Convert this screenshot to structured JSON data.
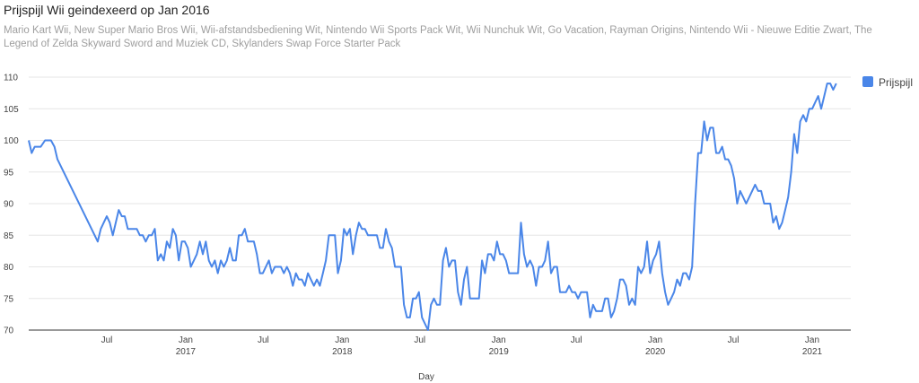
{
  "header": {
    "title": "Prijspijl Wii geindexeerd op Jan 2016",
    "subtitle": "Mario Kart Wii, New Super Mario Bros Wii, Wii-afstandsbediening Wit, Nintendo Wii Sports Pack Wit, Wii Nunchuk Wit, Go Vacation, Rayman Origins, Nintendo Wii - Nieuwe Editie Zwart, The Legend of Zelda Skyward Sword and Muziek CD, Skylanders Swap Force Starter Pack"
  },
  "colors": {
    "series": "#4a86e8",
    "grid": "#e6e6e6",
    "axis": "#444444"
  },
  "chart_data": {
    "type": "line",
    "title": "Prijspijl Wii geindexeerd op Jan 2016",
    "xlabel": "Day",
    "ylabel": "",
    "ylim": [
      70,
      110
    ],
    "xlim": [
      "2016-01-01",
      "2021-04-01"
    ],
    "yticks": [
      70,
      75,
      80,
      85,
      90,
      95,
      100,
      105,
      110
    ],
    "xticks": [
      {
        "date": "2016-07-01",
        "label": "Jul",
        "year": ""
      },
      {
        "date": "2017-01-01",
        "label": "Jan",
        "year": "2017"
      },
      {
        "date": "2017-07-01",
        "label": "Jul",
        "year": ""
      },
      {
        "date": "2018-01-01",
        "label": "Jan",
        "year": "2018"
      },
      {
        "date": "2018-07-01",
        "label": "Jul",
        "year": ""
      },
      {
        "date": "2019-01-01",
        "label": "Jan",
        "year": "2019"
      },
      {
        "date": "2019-07-01",
        "label": "Jul",
        "year": ""
      },
      {
        "date": "2020-01-01",
        "label": "Jan",
        "year": "2020"
      },
      {
        "date": "2020-07-01",
        "label": "Jul",
        "year": ""
      },
      {
        "date": "2021-01-01",
        "label": "Jan",
        "year": "2021"
      }
    ],
    "grid": true,
    "legend": "right",
    "series": [
      {
        "name": "Prijspijl",
        "points": [
          [
            "2016-01-01",
            100
          ],
          [
            "2016-01-08",
            98
          ],
          [
            "2016-01-15",
            99
          ],
          [
            "2016-01-29",
            99
          ],
          [
            "2016-02-08",
            100
          ],
          [
            "2016-02-22",
            100
          ],
          [
            "2016-03-01",
            99
          ],
          [
            "2016-03-08",
            97
          ],
          [
            "2016-06-10",
            84
          ],
          [
            "2016-06-17",
            86
          ],
          [
            "2016-06-24",
            87
          ],
          [
            "2016-07-01",
            88
          ],
          [
            "2016-07-08",
            87
          ],
          [
            "2016-07-15",
            85
          ],
          [
            "2016-07-22",
            87
          ],
          [
            "2016-07-29",
            89
          ],
          [
            "2016-08-05",
            88
          ],
          [
            "2016-08-12",
            88
          ],
          [
            "2016-08-19",
            86
          ],
          [
            "2016-09-09",
            86
          ],
          [
            "2016-09-16",
            85
          ],
          [
            "2016-09-23",
            85
          ],
          [
            "2016-09-30",
            84
          ],
          [
            "2016-10-07",
            85
          ],
          [
            "2016-10-14",
            85
          ],
          [
            "2016-10-21",
            86
          ],
          [
            "2016-10-28",
            81
          ],
          [
            "2016-11-04",
            82
          ],
          [
            "2016-11-11",
            81
          ],
          [
            "2016-11-18",
            84
          ],
          [
            "2016-11-25",
            83
          ],
          [
            "2016-12-02",
            86
          ],
          [
            "2016-12-09",
            85
          ],
          [
            "2016-12-16",
            81
          ],
          [
            "2016-12-23",
            84
          ],
          [
            "2016-12-30",
            84
          ],
          [
            "2017-01-06",
            83
          ],
          [
            "2017-01-13",
            80
          ],
          [
            "2017-01-20",
            81
          ],
          [
            "2017-01-27",
            82
          ],
          [
            "2017-02-03",
            84
          ],
          [
            "2017-02-10",
            82
          ],
          [
            "2017-02-17",
            84
          ],
          [
            "2017-02-24",
            81
          ],
          [
            "2017-03-03",
            80
          ],
          [
            "2017-03-10",
            81
          ],
          [
            "2017-03-17",
            79
          ],
          [
            "2017-03-24",
            81
          ],
          [
            "2017-03-31",
            80
          ],
          [
            "2017-04-07",
            81
          ],
          [
            "2017-04-14",
            83
          ],
          [
            "2017-04-21",
            81
          ],
          [
            "2017-04-28",
            81
          ],
          [
            "2017-05-05",
            85
          ],
          [
            "2017-05-12",
            85
          ],
          [
            "2017-05-19",
            86
          ],
          [
            "2017-05-26",
            84
          ],
          [
            "2017-06-09",
            84
          ],
          [
            "2017-06-16",
            82
          ],
          [
            "2017-06-23",
            79
          ],
          [
            "2017-06-30",
            79
          ],
          [
            "2017-07-07",
            80
          ],
          [
            "2017-07-14",
            81
          ],
          [
            "2017-07-21",
            79
          ],
          [
            "2017-07-28",
            80
          ],
          [
            "2017-08-11",
            80
          ],
          [
            "2017-08-18",
            79
          ],
          [
            "2017-08-25",
            80
          ],
          [
            "2017-09-01",
            79
          ],
          [
            "2017-09-08",
            77
          ],
          [
            "2017-09-15",
            79
          ],
          [
            "2017-09-22",
            78
          ],
          [
            "2017-09-29",
            78
          ],
          [
            "2017-10-06",
            77
          ],
          [
            "2017-10-13",
            79
          ],
          [
            "2017-10-20",
            78
          ],
          [
            "2017-10-27",
            77
          ],
          [
            "2017-11-03",
            78
          ],
          [
            "2017-11-10",
            77
          ],
          [
            "2017-11-17",
            79
          ],
          [
            "2017-11-24",
            81
          ],
          [
            "2017-12-01",
            85
          ],
          [
            "2017-12-15",
            85
          ],
          [
            "2017-12-22",
            79
          ],
          [
            "2017-12-29",
            81
          ],
          [
            "2018-01-05",
            86
          ],
          [
            "2018-01-12",
            85
          ],
          [
            "2018-01-19",
            86
          ],
          [
            "2018-01-26",
            82
          ],
          [
            "2018-02-02",
            85
          ],
          [
            "2018-02-09",
            87
          ],
          [
            "2018-02-16",
            86
          ],
          [
            "2018-02-23",
            86
          ],
          [
            "2018-03-02",
            85
          ],
          [
            "2018-03-23",
            85
          ],
          [
            "2018-03-30",
            83
          ],
          [
            "2018-04-06",
            83
          ],
          [
            "2018-04-13",
            86
          ],
          [
            "2018-04-20",
            84
          ],
          [
            "2018-04-27",
            83
          ],
          [
            "2018-05-04",
            80
          ],
          [
            "2018-05-18",
            80
          ],
          [
            "2018-05-25",
            74
          ],
          [
            "2018-06-01",
            72
          ],
          [
            "2018-06-08",
            72
          ],
          [
            "2018-06-15",
            75
          ],
          [
            "2018-06-22",
            75
          ],
          [
            "2018-06-29",
            76
          ],
          [
            "2018-07-06",
            72
          ],
          [
            "2018-07-20",
            70
          ],
          [
            "2018-07-27",
            74
          ],
          [
            "2018-08-03",
            75
          ],
          [
            "2018-08-10",
            74
          ],
          [
            "2018-08-17",
            74
          ],
          [
            "2018-08-24",
            81
          ],
          [
            "2018-08-31",
            83
          ],
          [
            "2018-09-07",
            80
          ],
          [
            "2018-09-14",
            81
          ],
          [
            "2018-09-21",
            81
          ],
          [
            "2018-09-28",
            76
          ],
          [
            "2018-10-05",
            74
          ],
          [
            "2018-10-12",
            78
          ],
          [
            "2018-10-19",
            80
          ],
          [
            "2018-10-26",
            75
          ],
          [
            "2018-11-16",
            75
          ],
          [
            "2018-11-23",
            81
          ],
          [
            "2018-11-30",
            79
          ],
          [
            "2018-12-07",
            82
          ],
          [
            "2018-12-14",
            82
          ],
          [
            "2018-12-21",
            81
          ],
          [
            "2018-12-28",
            84
          ],
          [
            "2019-01-04",
            82
          ],
          [
            "2019-01-11",
            82
          ],
          [
            "2019-01-18",
            81
          ],
          [
            "2019-01-25",
            79
          ],
          [
            "2019-02-15",
            79
          ],
          [
            "2019-02-22",
            87
          ],
          [
            "2019-03-01",
            82
          ],
          [
            "2019-03-08",
            80
          ],
          [
            "2019-03-15",
            81
          ],
          [
            "2019-03-22",
            80
          ],
          [
            "2019-03-29",
            77
          ],
          [
            "2019-04-05",
            80
          ],
          [
            "2019-04-12",
            80
          ],
          [
            "2019-04-19",
            81
          ],
          [
            "2019-04-26",
            84
          ],
          [
            "2019-05-03",
            79
          ],
          [
            "2019-05-10",
            80
          ],
          [
            "2019-05-17",
            80
          ],
          [
            "2019-05-24",
            76
          ],
          [
            "2019-06-07",
            76
          ],
          [
            "2019-06-14",
            77
          ],
          [
            "2019-06-21",
            76
          ],
          [
            "2019-06-28",
            76
          ],
          [
            "2019-07-05",
            75
          ],
          [
            "2019-07-12",
            76
          ],
          [
            "2019-07-26",
            76
          ],
          [
            "2019-08-02",
            72
          ],
          [
            "2019-08-09",
            74
          ],
          [
            "2019-08-16",
            73
          ],
          [
            "2019-08-30",
            73
          ],
          [
            "2019-09-06",
            75
          ],
          [
            "2019-09-13",
            75
          ],
          [
            "2019-09-20",
            72
          ],
          [
            "2019-09-27",
            73
          ],
          [
            "2019-10-04",
            75
          ],
          [
            "2019-10-11",
            78
          ],
          [
            "2019-10-18",
            78
          ],
          [
            "2019-10-25",
            77
          ],
          [
            "2019-11-01",
            74
          ],
          [
            "2019-11-08",
            75
          ],
          [
            "2019-11-15",
            74
          ],
          [
            "2019-11-22",
            80
          ],
          [
            "2019-11-29",
            79
          ],
          [
            "2019-12-06",
            80
          ],
          [
            "2019-12-13",
            84
          ],
          [
            "2019-12-20",
            79
          ],
          [
            "2019-12-27",
            81
          ],
          [
            "2020-01-03",
            82
          ],
          [
            "2020-01-10",
            84
          ],
          [
            "2020-01-17",
            79
          ],
          [
            "2020-01-24",
            76
          ],
          [
            "2020-01-31",
            74
          ],
          [
            "2020-02-07",
            75
          ],
          [
            "2020-02-14",
            76
          ],
          [
            "2020-02-21",
            78
          ],
          [
            "2020-02-28",
            77
          ],
          [
            "2020-03-06",
            79
          ],
          [
            "2020-03-13",
            79
          ],
          [
            "2020-03-20",
            78
          ],
          [
            "2020-03-27",
            80
          ],
          [
            "2020-04-03",
            90
          ],
          [
            "2020-04-10",
            98
          ],
          [
            "2020-04-17",
            98
          ],
          [
            "2020-04-24",
            103
          ],
          [
            "2020-05-01",
            100
          ],
          [
            "2020-05-08",
            102
          ],
          [
            "2020-05-15",
            102
          ],
          [
            "2020-05-22",
            98
          ],
          [
            "2020-05-29",
            98
          ],
          [
            "2020-06-05",
            99
          ],
          [
            "2020-06-12",
            97
          ],
          [
            "2020-06-19",
            97
          ],
          [
            "2020-06-26",
            96
          ],
          [
            "2020-07-03",
            94
          ],
          [
            "2020-07-10",
            90
          ],
          [
            "2020-07-17",
            92
          ],
          [
            "2020-07-24",
            91
          ],
          [
            "2020-07-31",
            90
          ],
          [
            "2020-08-07",
            91
          ],
          [
            "2020-08-14",
            92
          ],
          [
            "2020-08-21",
            93
          ],
          [
            "2020-08-28",
            92
          ],
          [
            "2020-09-04",
            92
          ],
          [
            "2020-09-11",
            90
          ],
          [
            "2020-09-25",
            90
          ],
          [
            "2020-10-02",
            87
          ],
          [
            "2020-10-09",
            88
          ],
          [
            "2020-10-16",
            86
          ],
          [
            "2020-10-23",
            87
          ],
          [
            "2020-10-30",
            89
          ],
          [
            "2020-11-06",
            91
          ],
          [
            "2020-11-13",
            95
          ],
          [
            "2020-11-20",
            101
          ],
          [
            "2020-11-27",
            98
          ],
          [
            "2020-12-04",
            103
          ],
          [
            "2020-12-11",
            104
          ],
          [
            "2020-12-18",
            103
          ],
          [
            "2020-12-25",
            105
          ],
          [
            "2021-01-01",
            105
          ],
          [
            "2021-01-08",
            106
          ],
          [
            "2021-01-15",
            107
          ],
          [
            "2021-01-22",
            105
          ],
          [
            "2021-01-29",
            107
          ],
          [
            "2021-02-05",
            109
          ],
          [
            "2021-02-12",
            109
          ],
          [
            "2021-02-19",
            108
          ],
          [
            "2021-02-26",
            109
          ]
        ]
      }
    ]
  }
}
